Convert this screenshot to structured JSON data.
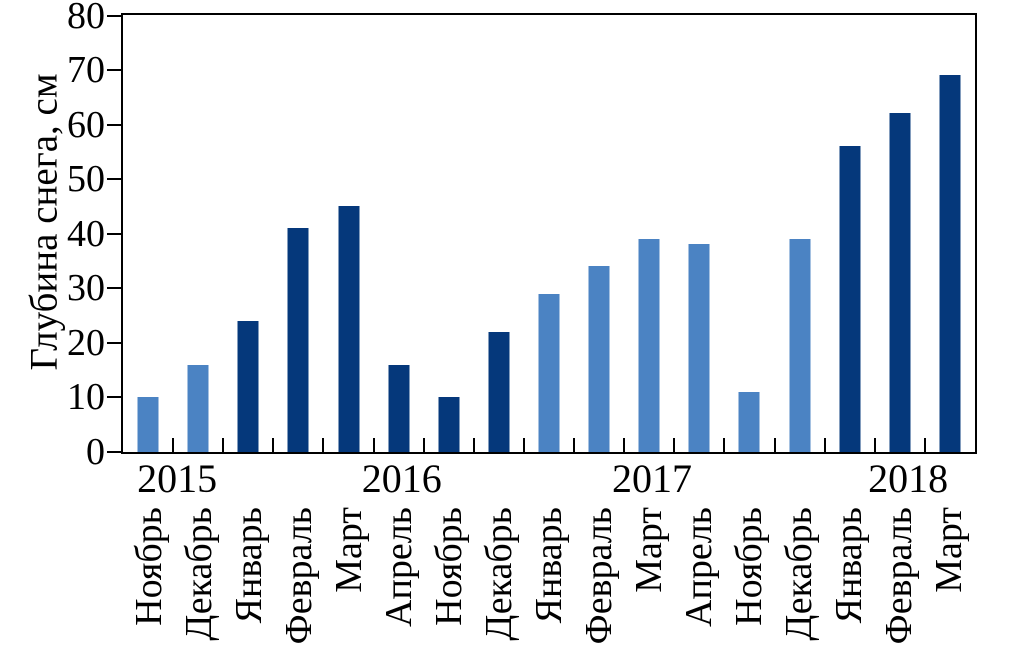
{
  "chart_data": {
    "type": "bar",
    "title": "",
    "ylabel": "Глубина снега, см",
    "xlabel": "",
    "ylim": [
      0,
      80
    ],
    "ytick_step": 10,
    "yticks": [
      0,
      10,
      20,
      30,
      40,
      50,
      60,
      70,
      80
    ],
    "grid": false,
    "legend_position": "none",
    "background_color": "#FFFFFF",
    "axis_color": "#000000",
    "bar_colors": {
      "light_blue": "#4B83C3",
      "dark_navy": "#05387B"
    },
    "bars": [
      {
        "month": "Ноябрь",
        "year": 2015,
        "value": 10,
        "shade": "light_blue"
      },
      {
        "month": "Декабрь",
        "year": 2015,
        "value": 16,
        "shade": "light_blue"
      },
      {
        "month": "Январь",
        "year": 2016,
        "value": 24,
        "shade": "dark_navy"
      },
      {
        "month": "Февраль",
        "year": 2016,
        "value": 41,
        "shade": "dark_navy"
      },
      {
        "month": "Март",
        "year": 2016,
        "value": 45,
        "shade": "dark_navy"
      },
      {
        "month": "Апрель",
        "year": 2016,
        "value": 16,
        "shade": "dark_navy"
      },
      {
        "month": "Ноябрь",
        "year": 2016,
        "value": 10,
        "shade": "dark_navy"
      },
      {
        "month": "Декабрь",
        "year": 2016,
        "value": 22,
        "shade": "dark_navy"
      },
      {
        "month": "Январь",
        "year": 2017,
        "value": 29,
        "shade": "light_blue"
      },
      {
        "month": "Февраль",
        "year": 2017,
        "value": 34,
        "shade": "light_blue"
      },
      {
        "month": "Март",
        "year": 2017,
        "value": 39,
        "shade": "light_blue"
      },
      {
        "month": "Апрель",
        "year": 2017,
        "value": 38,
        "shade": "light_blue"
      },
      {
        "month": "Ноябрь",
        "year": 2017,
        "value": 11,
        "shade": "light_blue"
      },
      {
        "month": "Декабрь",
        "year": 2017,
        "value": 39,
        "shade": "light_blue"
      },
      {
        "month": "Январь",
        "year": 2018,
        "value": 56,
        "shade": "dark_navy"
      },
      {
        "month": "Февраль",
        "year": 2018,
        "value": 62,
        "shade": "dark_navy"
      },
      {
        "month": "Март",
        "year": 2018,
        "value": 69,
        "shade": "dark_navy"
      }
    ],
    "year_labels": [
      {
        "label": "2015",
        "center_percent": 6.3
      },
      {
        "label": "2016",
        "center_percent": 32.7
      },
      {
        "label": "2017",
        "center_percent": 62.1
      },
      {
        "label": "2018",
        "center_percent": 92.2
      }
    ]
  }
}
